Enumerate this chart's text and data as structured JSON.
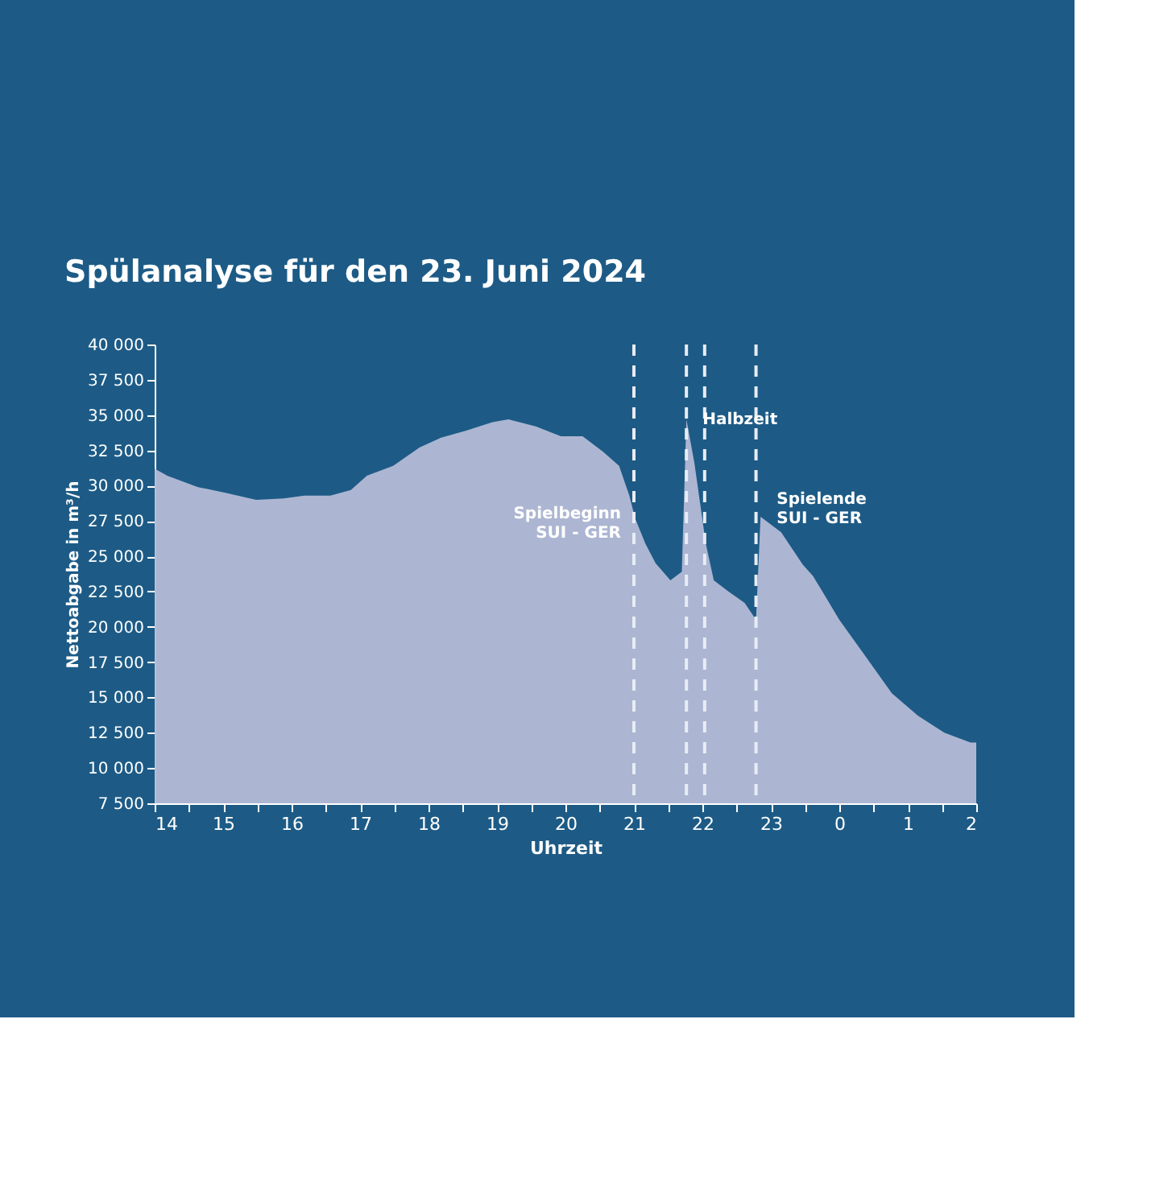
{
  "chart_data": {
    "type": "area",
    "title": "Spülanalyse für den 23. Juni 2024",
    "xlabel": "Uhrzeit",
    "ylabel": "Nettoabgabe in m³/h",
    "x": [
      "2024-06-23T14:00",
      "2024-06-23T14:11",
      "2024-06-23T14:38",
      "2024-06-23T15:02",
      "2024-06-23T15:29",
      "2024-06-23T15:53",
      "2024-06-23T16:11",
      "2024-06-23T16:34",
      "2024-06-23T16:52",
      "2024-06-23T17:06",
      "2024-06-23T17:29",
      "2024-06-23T17:52",
      "2024-06-23T18:11",
      "2024-06-23T18:33",
      "2024-06-23T18:56",
      "2024-06-23T19:10",
      "2024-06-23T19:34",
      "2024-06-23T19:56",
      "2024-06-23T20:15",
      "2024-06-23T20:33",
      "2024-06-23T20:47",
      "2024-06-23T20:56",
      "2024-06-23T21:01",
      "2024-06-23T21:10",
      "2024-06-23T21:19",
      "2024-06-23T21:32",
      "2024-06-23T21:42",
      "2024-06-23T21:46",
      "2024-06-23T21:53",
      "2024-06-23T22:03",
      "2024-06-23T22:10",
      "2024-06-23T22:23",
      "2024-06-23T22:37",
      "2024-06-23T22:47",
      "2024-06-23T22:51",
      "2024-06-23T23:09",
      "2024-06-23T23:28",
      "2024-06-23T23:37",
      "2024-06-24T00:00",
      "2024-06-24T00:23",
      "2024-06-24T00:46",
      "2024-06-24T01:09",
      "2024-06-24T01:32",
      "2024-06-24T01:55",
      "2024-06-24T02:00"
    ],
    "series": [
      {
        "color": "#b4bcd6",
        "values": [
          31200,
          30700,
          29900,
          29500,
          29000,
          29100,
          29300,
          29300,
          29700,
          30700,
          31400,
          32700,
          33400,
          33900,
          34500,
          34700,
          34200,
          33500,
          33500,
          32400,
          31400,
          29300,
          27700,
          25900,
          24500,
          23300,
          23900,
          34700,
          31600,
          25900,
          23300,
          22500,
          21700,
          20500,
          27800,
          26700,
          24400,
          23600,
          20500,
          17900,
          15300,
          13700,
          12500,
          11800,
          11800
        ]
      }
    ],
    "xlim": [
      "2024-06-23T14:00",
      "2024-06-24T02:00"
    ],
    "ylim": [
      7500,
      40000
    ],
    "xticks": [
      {
        "value": "2024-06-23T14:00",
        "label": "14"
      },
      {
        "value": "2024-06-23T14:30",
        "label": null
      },
      {
        "value": "2024-06-23T15:00",
        "label": "15"
      },
      {
        "value": "2024-06-23T15:30",
        "label": null
      },
      {
        "value": "2024-06-23T16:00",
        "label": "16"
      },
      {
        "value": "2024-06-23T16:30",
        "label": null
      },
      {
        "value": "2024-06-23T17:00",
        "label": "17"
      },
      {
        "value": "2024-06-23T17:30",
        "label": null
      },
      {
        "value": "2024-06-23T18:00",
        "label": "18"
      },
      {
        "value": "2024-06-23T18:30",
        "label": null
      },
      {
        "value": "2024-06-23T19:00",
        "label": "19"
      },
      {
        "value": "2024-06-23T19:30",
        "label": null
      },
      {
        "value": "2024-06-23T20:00",
        "label": "20"
      },
      {
        "value": "2024-06-23T20:30",
        "label": null
      },
      {
        "value": "2024-06-23T21:00",
        "label": "21"
      },
      {
        "value": "2024-06-23T21:30",
        "label": null
      },
      {
        "value": "2024-06-23T22:00",
        "label": "22"
      },
      {
        "value": "2024-06-23T22:30",
        "label": null
      },
      {
        "value": "2024-06-23T23:00",
        "label": "23"
      },
      {
        "value": "2024-06-23T23:30",
        "label": null
      },
      {
        "value": "2024-06-24T00:00",
        "label": "0"
      },
      {
        "value": "2024-06-24T00:30",
        "label": null
      },
      {
        "value": "2024-06-24T01:00",
        "label": "1"
      },
      {
        "value": "2024-06-24T01:30",
        "label": null
      },
      {
        "value": "2024-06-24T02:00",
        "label": "2"
      }
    ],
    "yticks": [
      {
        "value": 7500,
        "label": "7 500"
      },
      {
        "value": 10000,
        "label": "10 000"
      },
      {
        "value": 12500,
        "label": "12 500"
      },
      {
        "value": 15000,
        "label": "15 000"
      },
      {
        "value": 17500,
        "label": "17 500"
      },
      {
        "value": 20000,
        "label": "20 000"
      },
      {
        "value": 22500,
        "label": "22 500"
      },
      {
        "value": 25000,
        "label": "25 000"
      },
      {
        "value": 27500,
        "label": "27 500"
      },
      {
        "value": 30000,
        "label": "30 000"
      },
      {
        "value": 32500,
        "label": "32 500"
      },
      {
        "value": 35000,
        "label": "35 000"
      },
      {
        "value": 37500,
        "label": "37 500"
      },
      {
        "value": 40000,
        "label": "40 000"
      }
    ],
    "ref_lines": [
      {
        "axis": "x",
        "value": "2024-06-23T21:00",
        "color": "#e8ecf4",
        "line_style": "dashed"
      },
      {
        "axis": "x",
        "value": "2024-06-23T21:46",
        "color": "#e8ecf4",
        "line_style": "dashed"
      },
      {
        "axis": "x",
        "value": "2024-06-23T22:02",
        "color": "#e8ecf4",
        "line_style": "dashed"
      },
      {
        "axis": "x",
        "value": "2024-06-23T22:47",
        "color": "#e8ecf4",
        "line_style": "dashed"
      }
    ],
    "annotations": [
      {
        "text": "Spielbeginn\nSUI - GER",
        "x": "2024-06-23T21:00",
        "y": 28000
      },
      {
        "text": "Halbzeit",
        "x": "2024-06-23T21:46",
        "y": 34700
      },
      {
        "text": "Spielende\nSUI - GER",
        "x": "2024-06-23T22:51",
        "y": 27800
      }
    ],
    "grid": false,
    "legend": false
  }
}
